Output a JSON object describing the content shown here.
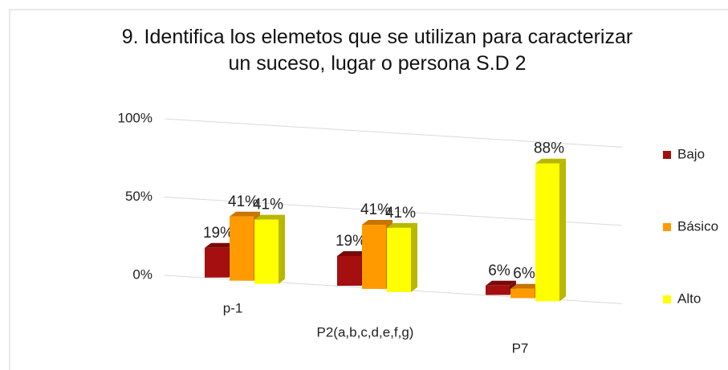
{
  "chart_data": {
    "type": "bar3d",
    "title": "9. Identifica los elemetos que se utilizan para caracterizar un suceso, lugar o persona S.D 2",
    "categories": [
      "p-1",
      "P2(a,b,c,d,e,f,g)",
      "P7"
    ],
    "series": [
      {
        "name": "Bajo",
        "color": "#a50f0f",
        "side": "#7a0a0a",
        "values": [
          19,
          19,
          6
        ],
        "value_labels": [
          "19%",
          "19%",
          "6%"
        ]
      },
      {
        "name": "Básico",
        "color": "#ff9a00",
        "side": "#c77400",
        "values": [
          41,
          41,
          6
        ],
        "value_labels": [
          "41%",
          "41%",
          "6%"
        ]
      },
      {
        "name": "Alto",
        "color": "#ffff00",
        "side": "#b8b800",
        "values": [
          41,
          41,
          88
        ],
        "value_labels": [
          "41%",
          "41%",
          "88%"
        ]
      }
    ],
    "ylim": [
      0,
      100
    ],
    "yticks": [
      {
        "value": 0,
        "label": "0%"
      },
      {
        "value": 50,
        "label": "50%"
      },
      {
        "value": 100,
        "label": "100%"
      }
    ],
    "grid": true,
    "legend": "right"
  }
}
